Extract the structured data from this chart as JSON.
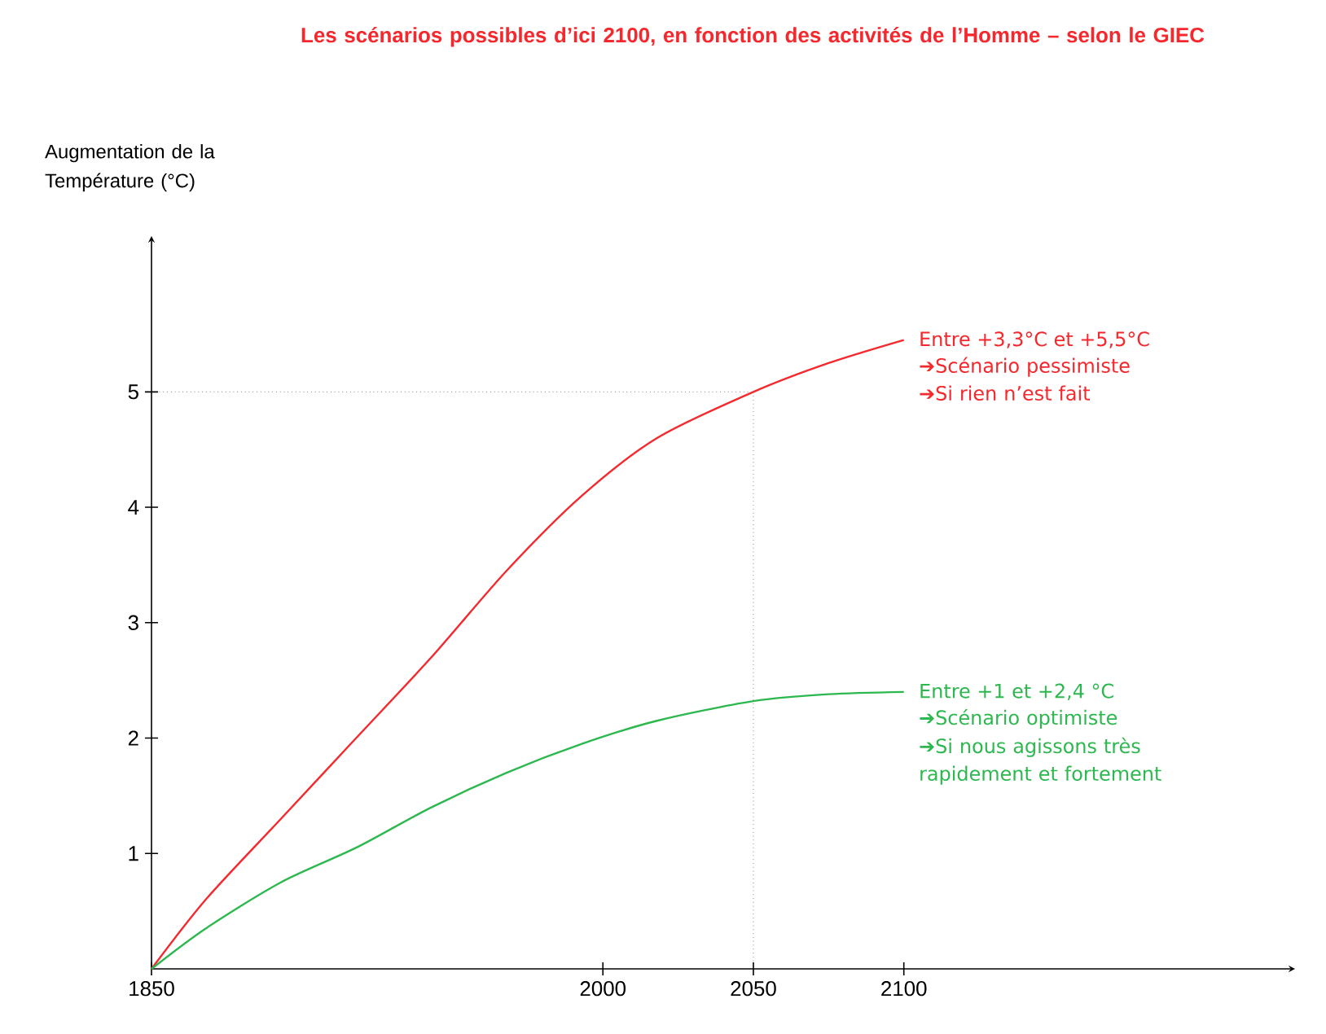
{
  "chart_data": {
    "type": "line",
    "title": "Les scénarios possibles d’ici 2100, en fonction des activités de l’Homme – selon le GIEC",
    "ylabel": "Augmentation de la Température (°C)",
    "x": [
      1850,
      1868,
      1893,
      1918,
      1943,
      1968,
      1993,
      2018,
      2050,
      2075,
      2100
    ],
    "series": [
      {
        "color": "#f5282d",
        "values": [
          0,
          0.6,
          1.3,
          2.0,
          2.7,
          3.45,
          4.1,
          4.6,
          5.0,
          5.25,
          5.45
        ]
      },
      {
        "color": "#2cb84e",
        "values": [
          0,
          0.35,
          0.75,
          1.05,
          1.4,
          1.7,
          1.95,
          2.15,
          2.32,
          2.38,
          2.4
        ]
      }
    ],
    "xlim": [
      1850,
      2230
    ],
    "ylim": [
      0,
      6.35
    ],
    "xticks": [
      1850,
      2000,
      2050,
      2100
    ],
    "yticks": [
      1,
      2,
      3,
      4,
      5
    ],
    "grid": false,
    "marker": "none",
    "line_style": "solid",
    "ref_lines": [
      {
        "axis": "y",
        "value": 5,
        "line_style": "dotted",
        "color": "#444444"
      },
      {
        "axis": "x",
        "value": 2050,
        "line_style": "dotted",
        "color": "#444444"
      }
    ],
    "annotations": [
      {
        "text": "Entre +3,3°C et +5,5°C",
        "x": 2100,
        "y": 5.45
      },
      "➔Scénario pessimiste",
      "➔Si rien n’est fait",
      {
        "text": "Entre +1 et +2,4 °C",
        "x": 2100,
        "y": 2.4
      },
      "➔Scénario optimiste",
      "➔Si nous agissons très rapidement et fortement"
    ]
  }
}
